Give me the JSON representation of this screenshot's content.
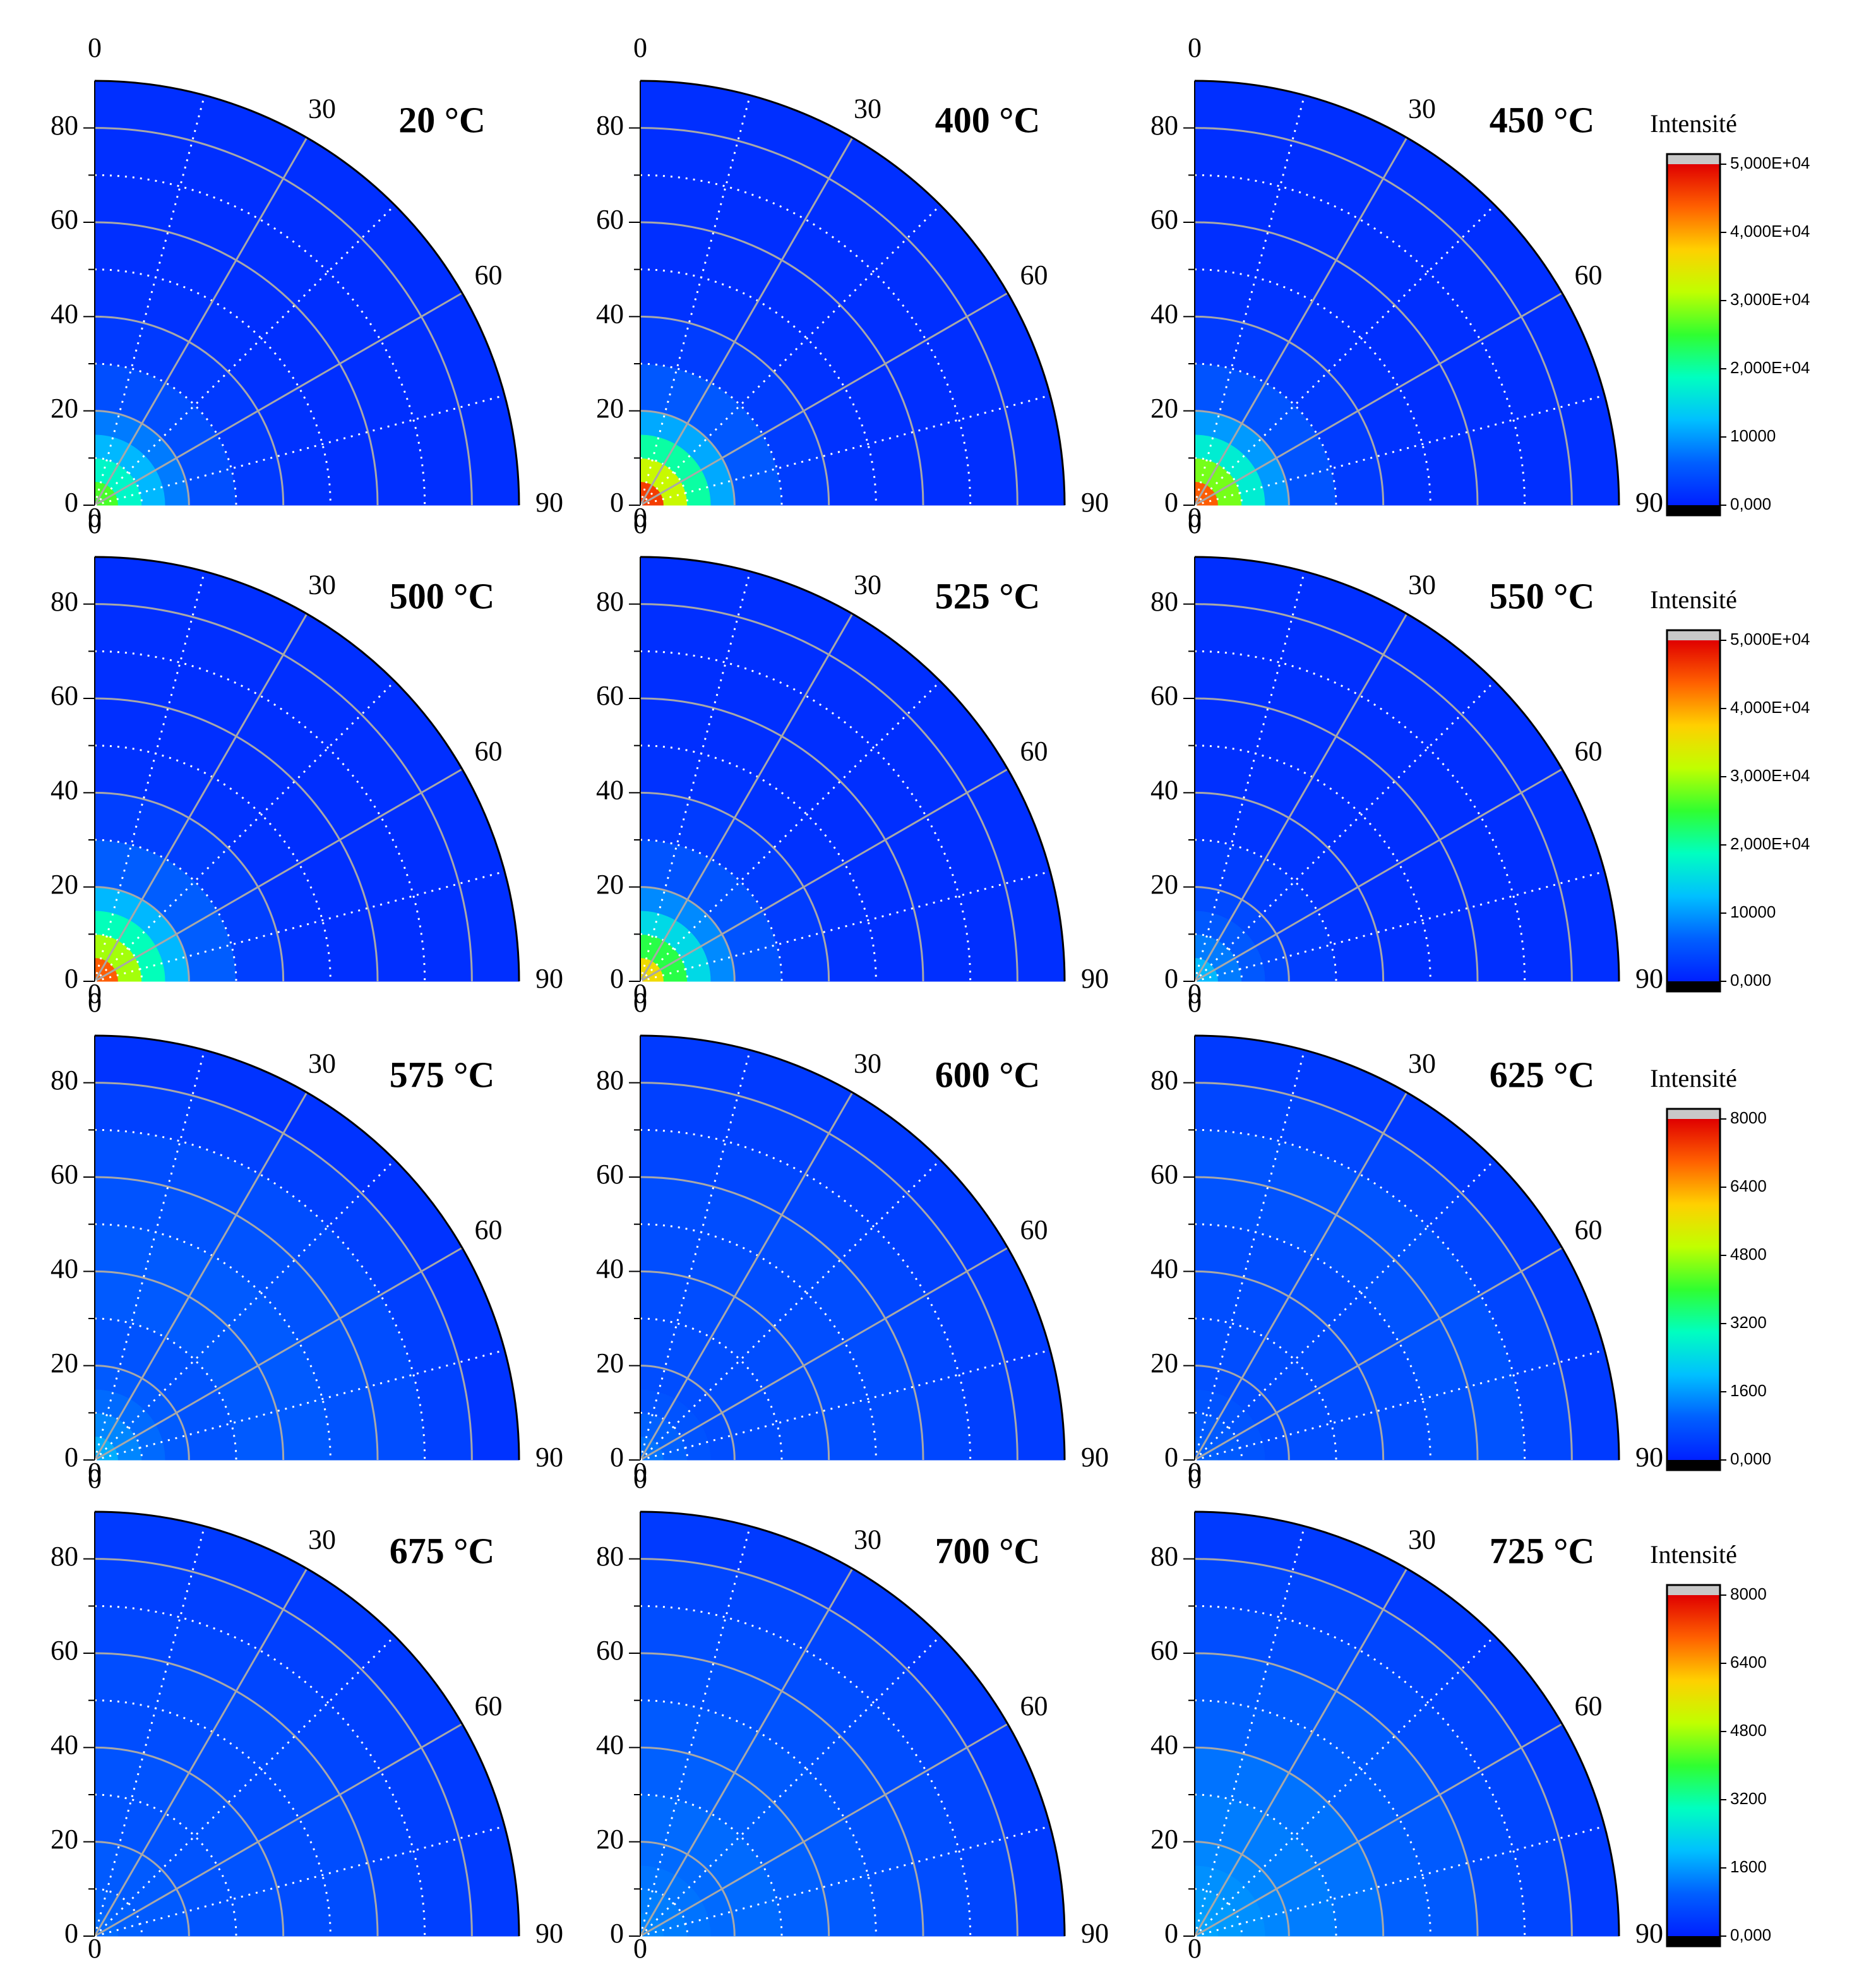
{
  "axes": {
    "rlim": [
      0,
      90
    ],
    "rticks": [
      0,
      20,
      40,
      60,
      80
    ],
    "thetaticks": [
      0,
      30,
      60,
      90
    ]
  },
  "colormap": [
    "#0020ff",
    "#0060ff",
    "#00c0ff",
    "#00ffc0",
    "#30ff30",
    "#c0ff00",
    "#ffd000",
    "#ff6000",
    "#e00000"
  ],
  "colorbars": [
    {
      "title": "Intensité",
      "lim": [
        0,
        50000
      ],
      "ticks": [
        {
          "value": 0,
          "label": "0,000"
        },
        10000,
        {
          "value": 20000,
          "label": "2,000E+04"
        },
        {
          "value": 30000,
          "label": "3,000E+04"
        },
        {
          "value": 40000,
          "label": "4,000E+04"
        },
        {
          "value": 50000,
          "label": "5,000E+04"
        }
      ]
    },
    {
      "title": "Intensité",
      "lim": [
        0,
        50000
      ],
      "ticks": [
        {
          "value": 0,
          "label": "0,000"
        },
        10000,
        {
          "value": 20000,
          "label": "2,000E+04"
        },
        {
          "value": 30000,
          "label": "3,000E+04"
        },
        {
          "value": 40000,
          "label": "4,000E+04"
        },
        {
          "value": 50000,
          "label": "5,000E+04"
        }
      ]
    },
    {
      "title": "Intensité",
      "lim": [
        0,
        8000
      ],
      "ticks": [
        {
          "value": 0,
          "label": "0,000"
        },
        1600,
        3200,
        4800,
        6400,
        8000
      ]
    },
    {
      "title": "Intensité",
      "lim": [
        0,
        8000
      ],
      "ticks": [
        {
          "value": 0,
          "label": "0,000"
        },
        1600,
        3200,
        4800,
        6400,
        8000
      ]
    }
  ],
  "chart_data": [
    {
      "type": "polar",
      "title": "20 °C",
      "r_bins": [
        0,
        5,
        10,
        15,
        20,
        30,
        40,
        50,
        60,
        70,
        80,
        90
      ],
      "intensity": [
        26000,
        18000,
        12000,
        8000,
        4500,
        2500,
        1800,
        1500,
        1500,
        1500,
        1500
      ]
    },
    {
      "type": "polar",
      "title": "400 °C",
      "r_bins": [
        0,
        5,
        10,
        15,
        20,
        30,
        40,
        50,
        60,
        70,
        80,
        90
      ],
      "intensity": [
        46000,
        32000,
        20000,
        11000,
        5500,
        2800,
        1800,
        1500,
        1500,
        1500,
        1500
      ]
    },
    {
      "type": "polar",
      "title": "450 °C",
      "r_bins": [
        0,
        5,
        10,
        15,
        20,
        30,
        40,
        50,
        60,
        70,
        80,
        90
      ],
      "intensity": [
        44000,
        28000,
        17000,
        10000,
        5000,
        2600,
        1800,
        1500,
        1500,
        1500,
        1500
      ]
    },
    {
      "type": "polar",
      "title": "500 °C",
      "r_bins": [
        0,
        5,
        10,
        15,
        20,
        30,
        40,
        50,
        60,
        70,
        80,
        90
      ],
      "intensity": [
        44000,
        30000,
        19000,
        12000,
        6000,
        3000,
        1800,
        1500,
        1500,
        1500,
        1500
      ]
    },
    {
      "type": "polar",
      "title": "525 °C",
      "r_bins": [
        0,
        5,
        10,
        15,
        20,
        30,
        40,
        50,
        60,
        70,
        80,
        90
      ],
      "intensity": [
        36000,
        24000,
        15000,
        9000,
        5000,
        2700,
        1800,
        1500,
        1500,
        1500,
        1500
      ]
    },
    {
      "type": "polar",
      "title": "550 °C",
      "r_bins": [
        0,
        5,
        10,
        15,
        20,
        30,
        40,
        50,
        60,
        70,
        80,
        90
      ],
      "intensity": [
        12000,
        8000,
        5500,
        4000,
        2800,
        2000,
        1600,
        1500,
        1500,
        1500,
        1500
      ]
    },
    {
      "type": "polar",
      "title": "575 °C",
      "r_bins": [
        0,
        5,
        10,
        15,
        20,
        30,
        40,
        50,
        60,
        70,
        80,
        90
      ],
      "intensity": [
        1800,
        1400,
        1100,
        900,
        800,
        900,
        900,
        800,
        700,
        500,
        300
      ]
    },
    {
      "type": "polar",
      "title": "600 °C",
      "r_bins": [
        0,
        5,
        10,
        15,
        20,
        30,
        40,
        50,
        60,
        70,
        80,
        90
      ],
      "intensity": [
        1200,
        1000,
        800,
        700,
        700,
        700,
        700,
        700,
        600,
        500,
        400
      ]
    },
    {
      "type": "polar",
      "title": "625 °C",
      "r_bins": [
        0,
        5,
        10,
        15,
        20,
        30,
        40,
        50,
        60,
        70,
        80,
        90
      ],
      "intensity": [
        1000,
        900,
        800,
        700,
        700,
        700,
        700,
        800,
        800,
        600,
        400
      ]
    },
    {
      "type": "polar",
      "title": "675 °C",
      "r_bins": [
        0,
        5,
        10,
        15,
        20,
        30,
        40,
        50,
        60,
        70,
        80,
        90
      ],
      "intensity": [
        1100,
        1000,
        900,
        900,
        800,
        800,
        700,
        700,
        600,
        500,
        400
      ]
    },
    {
      "type": "polar",
      "title": "700 °C",
      "r_bins": [
        0,
        5,
        10,
        15,
        20,
        30,
        40,
        50,
        60,
        70,
        80,
        90
      ],
      "intensity": [
        1400,
        1300,
        1200,
        1100,
        1100,
        1000,
        900,
        800,
        700,
        600,
        400
      ]
    },
    {
      "type": "polar",
      "title": "725 °C",
      "r_bins": [
        0,
        5,
        10,
        15,
        20,
        30,
        40,
        50,
        60,
        70,
        80,
        90
      ],
      "intensity": [
        1700,
        1600,
        1500,
        1400,
        1300,
        1200,
        1000,
        900,
        700,
        600,
        400
      ]
    }
  ]
}
